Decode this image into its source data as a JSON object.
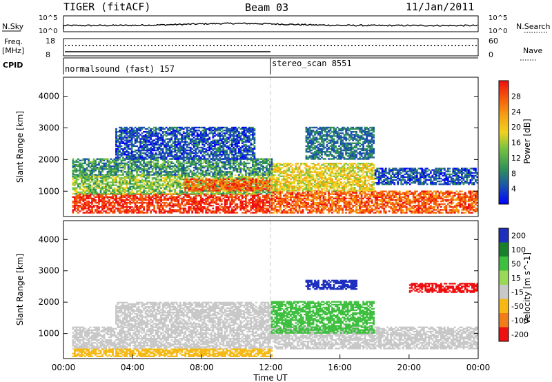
{
  "header": {
    "radar": "TIGER (fitACF)",
    "beam": "Beam 03",
    "date": "11/Jan/2011"
  },
  "status_panels": {
    "nsky_label": "N.Sky",
    "nsearch_label": "N.Search",
    "log_ticks": [
      "10^5",
      "10^0"
    ],
    "freq_label": "Freq.",
    "freq_unit": "[MHz]",
    "freq_ticks": [
      "18",
      "8"
    ],
    "nave_label": "Nave",
    "nave_ticks": [
      "60",
      "0"
    ],
    "cpid_label": "CPID",
    "cpid_segments": [
      {
        "label": "normalsound (fast) 157",
        "start_hour": 0,
        "end_hour": 12
      },
      {
        "label": "stereo_scan 8551",
        "start_hour": 12,
        "end_hour": 24
      }
    ]
  },
  "chart_data": [
    {
      "type": "heatmap",
      "ylabel": "Slant Range [km]",
      "xlabel": "",
      "ylim": [
        200,
        4600
      ],
      "xlim": [
        0,
        24
      ],
      "yticks": [
        "1000",
        "2000",
        "3000",
        "4000"
      ],
      "colorbar": {
        "label": "Power [dB]",
        "ticks": [
          "4",
          "8",
          "12",
          "16",
          "20",
          "24",
          "28"
        ],
        "colors": [
          "#0000ff",
          "#1a4fb0",
          "#2f8f5a",
          "#78c241",
          "#f0d21e",
          "#f5a012",
          "#f55a0a",
          "#ee1010"
        ]
      },
      "regions": [
        {
          "t": [
            0.5,
            12
          ],
          "range": [
            300,
            900
          ],
          "value": 28
        },
        {
          "t": [
            12,
            24
          ],
          "range": [
            300,
            1000
          ],
          "value": 26
        },
        {
          "t": [
            0.5,
            12
          ],
          "range": [
            900,
            1500
          ],
          "value": 14
        },
        {
          "t": [
            7,
            12
          ],
          "range": [
            1000,
            1400
          ],
          "value": 26
        },
        {
          "t": [
            12,
            18
          ],
          "range": [
            1000,
            1900
          ],
          "value": 18
        },
        {
          "t": [
            0.5,
            12
          ],
          "range": [
            1500,
            2000
          ],
          "value": 10
        },
        {
          "t": [
            3,
            11
          ],
          "range": [
            2000,
            3000
          ],
          "value": 6
        },
        {
          "t": [
            14,
            18
          ],
          "range": [
            2000,
            3000
          ],
          "value": 8
        },
        {
          "t": [
            18,
            24
          ],
          "range": [
            1200,
            1700
          ],
          "value": 6
        }
      ]
    },
    {
      "type": "heatmap",
      "ylabel": "Slant Range [km]",
      "xlabel": "Time UT",
      "ylim": [
        200,
        4600
      ],
      "xlim": [
        0,
        24
      ],
      "yticks": [
        "1000",
        "2000",
        "3000",
        "4000"
      ],
      "xticks": [
        "00:00",
        "04:00",
        "08:00",
        "12:00",
        "16:00",
        "20:00",
        "00:00"
      ],
      "colorbar": {
        "label": "Velocity [m s^-1]",
        "ticks": [
          "200",
          "100",
          "50",
          "15",
          "-15",
          "-50",
          "-100",
          "-200"
        ],
        "colors": [
          "#1e2fbe",
          "#1a7f2a",
          "#3fbf3f",
          "#9ad85a",
          "#c8c8c8",
          "#f5b814",
          "#f07d1a",
          "#ee1010"
        ]
      },
      "regions": [
        {
          "t": [
            0.5,
            24
          ],
          "range": [
            500,
            1200
          ],
          "value": 0
        },
        {
          "t": [
            0.5,
            12
          ],
          "range": [
            250,
            500
          ],
          "value": -40
        },
        {
          "t": [
            3,
            12
          ],
          "range": [
            1200,
            2000
          ],
          "value": 0
        },
        {
          "t": [
            12,
            18
          ],
          "range": [
            1000,
            2000
          ],
          "value": 40
        },
        {
          "t": [
            14,
            17
          ],
          "range": [
            2400,
            2700
          ],
          "value": 200
        },
        {
          "t": [
            20,
            24
          ],
          "range": [
            2300,
            2600
          ],
          "value": -150
        }
      ]
    }
  ]
}
